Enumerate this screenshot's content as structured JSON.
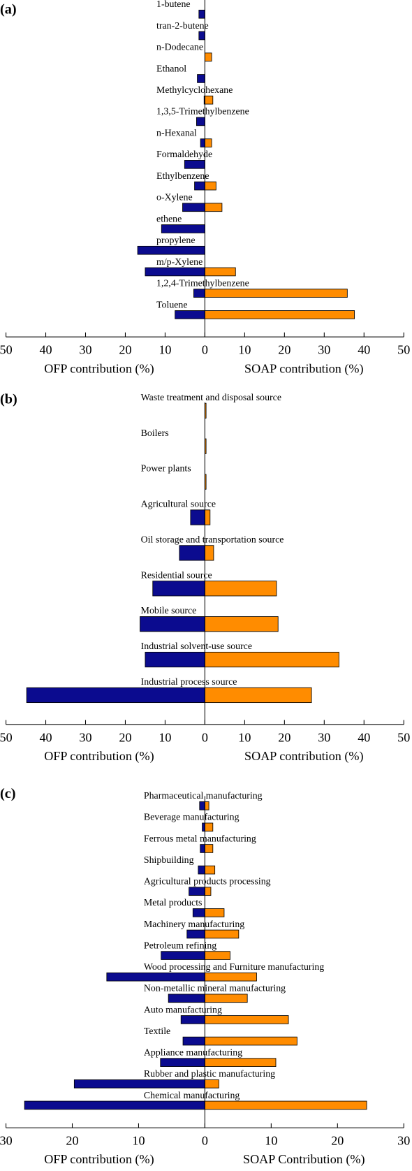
{
  "chart_data": [
    {
      "type": "bar",
      "label": "(a)",
      "categories": [
        "1-butene",
        "tran-2-butene",
        "n-Dodecane",
        "Ethanol",
        "Methylcyclohexane",
        "1,3,5-Trimethylbenzene",
        "n-Hexanal",
        "Formaldehyde",
        "Ethylbenzene",
        "o-Xylene",
        "ethene",
        "propylene",
        "m/p-Xylene",
        "1,2,4-Trimethylbenzene",
        "Toluene"
      ],
      "series": [
        {
          "color": "#0b0b8f",
          "axis": "left",
          "values": [
            1.5,
            1.5,
            0,
            1.9,
            0.2,
            2.1,
            1.1,
            5.1,
            2.6,
            5.6,
            10.9,
            16.9,
            15.0,
            2.8,
            7.5
          ]
        },
        {
          "color": "#ff8c00",
          "axis": "right",
          "values": [
            0,
            0,
            1.7,
            0,
            2.0,
            0,
            1.7,
            0,
            2.8,
            4.3,
            0,
            0,
            7.7,
            35.8,
            37.6
          ]
        }
      ],
      "left_xlim": [
        0,
        50
      ],
      "left_xticks": [
        10,
        20,
        30,
        40,
        50
      ],
      "right_xlim": [
        0,
        50
      ],
      "right_xticks": [
        0,
        10,
        20,
        30,
        40,
        50
      ],
      "left_xlabel": "OFP contribution (%)",
      "right_xlabel": "SOAP contribution (%)"
    },
    {
      "type": "bar",
      "label": "(b)",
      "categories": [
        "Waste treatment and disposal source",
        "Boilers",
        "Power plants",
        "Agricultural source",
        "Oil storage and transportation source",
        "Residential source",
        "Mobile source",
        "Industrial solvent-use source",
        "Industrial process source"
      ],
      "series": [
        {
          "color": "#0b0b8f",
          "axis": "left",
          "values": [
            0,
            0,
            0,
            3.6,
            6.4,
            13.1,
            16.3,
            15.0,
            44.8
          ]
        },
        {
          "color": "#ff8c00",
          "axis": "right",
          "values": [
            0.3,
            0.3,
            0.3,
            1.3,
            2.2,
            18.0,
            18.4,
            33.7,
            26.8
          ]
        }
      ],
      "left_xlim": [
        0,
        50
      ],
      "left_xticks": [
        10,
        20,
        30,
        40,
        50
      ],
      "right_xlim": [
        0,
        50
      ],
      "right_xticks": [
        0,
        10,
        20,
        30,
        40,
        50
      ],
      "left_xlabel": "OFP contribution (%)",
      "right_xlabel": "SOAP contribution (%)"
    },
    {
      "type": "bar",
      "label": "(c)",
      "categories": [
        "Pharmaceutical manufacturing",
        "Beverage manufacturing",
        "Ferrous metal manufacturing",
        "Shipbuilding",
        "Agricultural products processing",
        "Metal products",
        "Machinery manufacturing",
        "Petroleum refining",
        "Wood processing and Furniture manufacturing",
        "Non-metallic mineral manufacturing",
        "Auto manufacturing",
        "Textile",
        "Appliance manufacturing",
        "Rubber and plastic manufacturing",
        "Chemical manufacturing"
      ],
      "series": [
        {
          "color": "#0b0b8f",
          "axis": "left",
          "values": [
            0.8,
            0.4,
            0.7,
            1.0,
            2.4,
            1.8,
            2.7,
            6.6,
            14.8,
            5.5,
            3.6,
            3.3,
            6.7,
            19.7,
            27.2
          ]
        },
        {
          "color": "#ff8c00",
          "axis": "right",
          "values": [
            0.6,
            1.2,
            1.2,
            1.5,
            0.9,
            2.9,
            5.1,
            3.8,
            7.8,
            6.4,
            12.6,
            13.9,
            10.7,
            2.1,
            24.4
          ]
        }
      ],
      "left_xlim": [
        0,
        30
      ],
      "left_xticks": [
        10,
        20,
        30
      ],
      "right_xlim": [
        0,
        30
      ],
      "right_xticks": [
        0,
        10,
        20,
        30
      ],
      "left_xlabel": "OFP contribution (%)",
      "right_xlabel": "SOAP Contribution (%)"
    }
  ]
}
